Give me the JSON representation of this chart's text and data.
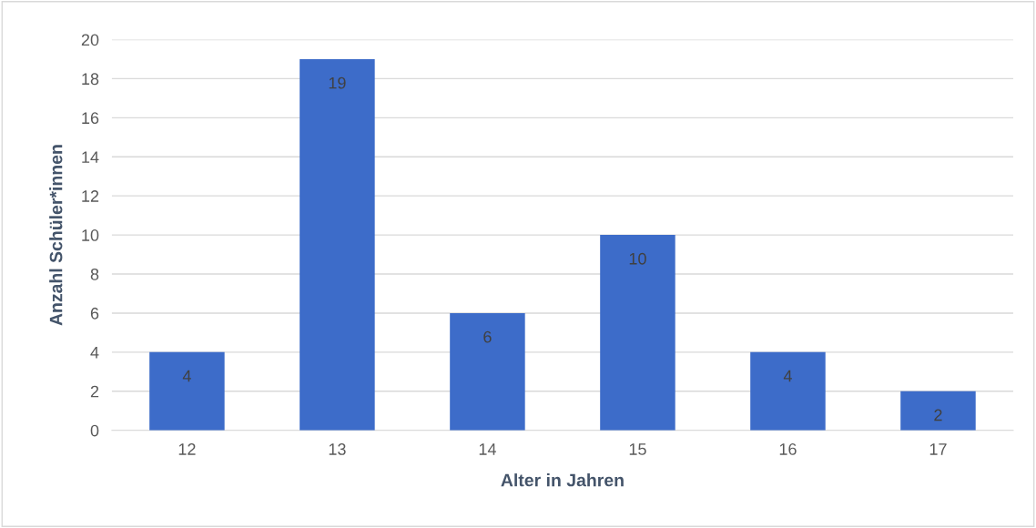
{
  "chart_data": {
    "type": "bar",
    "xlabel": "Alter in Jahren",
    "ylabel": "Anzahl Schüler*innen",
    "categories": [
      "12",
      "13",
      "14",
      "15",
      "16",
      "17"
    ],
    "values": [
      4,
      19,
      6,
      10,
      4,
      2
    ],
    "color": "#3d6cc9",
    "ylim": [
      0,
      20
    ],
    "yticks": [
      0,
      2,
      4,
      6,
      8,
      10,
      12,
      14,
      16,
      18,
      20
    ],
    "grid": "y",
    "data_labels": true
  }
}
